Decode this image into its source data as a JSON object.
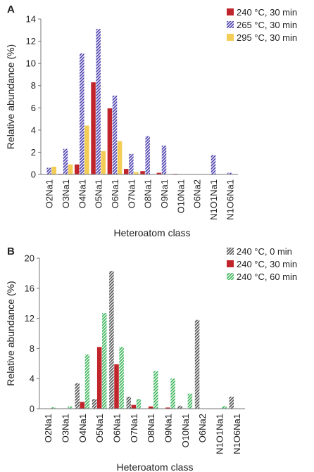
{
  "chart_data": [
    {
      "panel": "A",
      "type": "bar",
      "xlabel": "Heteroatom class",
      "ylabel": "Relative abundance (%)",
      "ylim": [
        0,
        14
      ],
      "yticks": [
        0,
        2,
        4,
        6,
        8,
        10,
        12,
        14
      ],
      "grid": false,
      "legend_position": "top-right",
      "categories": [
        "O2Na1",
        "O3Na1",
        "O4Na1",
        "O5Na1",
        "O6Na1",
        "O7Na1",
        "O8Na1",
        "O9Na1",
        "O10Na1",
        "O6Na2",
        "N1O1Na1",
        "N1O6Na1"
      ],
      "series": [
        {
          "name": "240 °C, 30 min",
          "color": "#c0252b",
          "pattern": "solid",
          "values": [
            0,
            0.05,
            0.9,
            8.3,
            5.95,
            0.5,
            0.3,
            0.15,
            0.05,
            0,
            0,
            0
          ]
        },
        {
          "name": "265 °C, 30 min",
          "color": "#4b3fae",
          "pattern": "hatch",
          "values": [
            0.6,
            2.3,
            10.9,
            13.1,
            7.1,
            1.85,
            3.45,
            2.6,
            0,
            0,
            1.75,
            0.15
          ]
        },
        {
          "name": "295 °C, 30 min",
          "color": "#f3cd55",
          "pattern": "solid",
          "values": [
            0.7,
            0.9,
            4.4,
            2.1,
            3.0,
            0.2,
            0,
            0,
            0,
            0,
            0,
            0
          ]
        }
      ]
    },
    {
      "panel": "B",
      "type": "bar",
      "xlabel": "Heteroatom class",
      "ylabel": "Relative abundance (%)",
      "ylim": [
        0,
        20
      ],
      "yticks": [
        0,
        4,
        8,
        12,
        16,
        20
      ],
      "grid": false,
      "legend_position": "top-right",
      "categories": [
        "O2Na1",
        "O3Na1",
        "O4Na1",
        "O5Na1",
        "O6Na1",
        "O7Na1",
        "O8Na1",
        "O9Na1",
        "O10Na1",
        "O6Na2",
        "N1O1Na1",
        "N1O6Na1"
      ],
      "series": [
        {
          "name": "240 °C, 0 min",
          "color": "#555555",
          "pattern": "hatch",
          "values": [
            0,
            0,
            3.4,
            1.3,
            18.3,
            1.6,
            0,
            0,
            0.4,
            11.8,
            0,
            1.6
          ]
        },
        {
          "name": "240 °C, 30 min",
          "color": "#c0252b",
          "pattern": "solid",
          "values": [
            0,
            0.05,
            0.9,
            8.2,
            5.9,
            0.5,
            0.3,
            0.15,
            0.05,
            0,
            0,
            0
          ]
        },
        {
          "name": "240 °C, 60 min",
          "color": "#3cb55a",
          "pattern": "hatch",
          "values": [
            0.2,
            0.3,
            7.2,
            12.7,
            8.2,
            1.3,
            5.0,
            4.0,
            2.0,
            0,
            0.35,
            0
          ]
        }
      ]
    }
  ]
}
